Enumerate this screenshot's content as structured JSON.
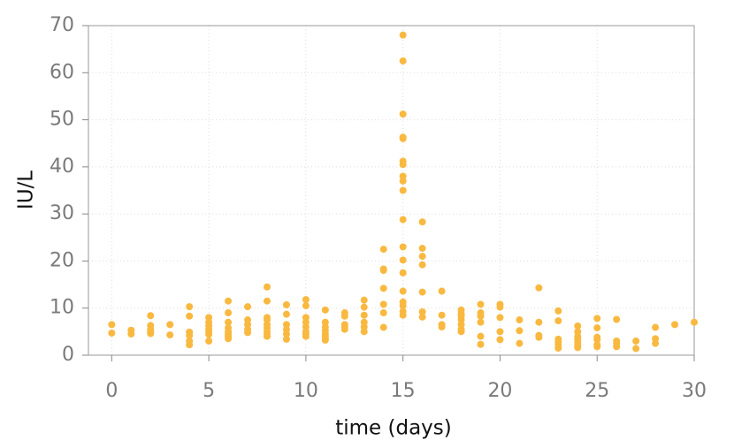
{
  "chart_data": {
    "type": "scatter",
    "xlabel": "time (days)",
    "ylabel": "IU/L",
    "color": "#f9b940",
    "x": [
      0,
      0,
      1,
      1,
      2,
      2,
      2,
      2,
      2,
      3,
      3,
      4,
      4,
      4,
      4,
      4,
      4,
      5,
      5,
      5,
      5,
      5,
      5,
      5,
      6,
      6,
      6,
      6,
      6,
      6,
      6,
      6,
      7,
      7,
      7,
      7,
      7,
      8,
      8,
      8,
      8,
      8,
      8,
      8,
      8,
      8,
      9,
      9,
      9,
      9,
      9,
      9,
      10,
      10,
      10,
      10,
      10,
      10,
      10,
      10,
      11,
      11,
      11,
      11,
      11,
      11,
      11,
      11,
      12,
      12,
      12,
      12,
      12,
      13,
      13,
      13,
      13,
      13,
      13,
      14,
      14,
      14,
      14,
      14,
      14,
      14,
      15,
      15,
      15,
      15,
      15,
      15,
      15,
      15,
      15,
      15,
      15,
      15,
      15,
      15,
      15,
      15,
      15,
      15,
      15,
      16,
      16,
      16,
      16,
      16,
      16,
      16,
      17,
      17,
      17,
      17,
      18,
      18,
      18,
      18,
      18,
      18,
      18,
      19,
      19,
      19,
      19,
      19,
      19,
      20,
      20,
      20,
      20,
      20,
      21,
      21,
      21,
      22,
      22,
      22,
      22,
      23,
      23,
      23,
      23,
      23,
      23,
      24,
      24,
      24,
      24,
      24,
      24,
      24,
      25,
      25,
      25,
      25,
      25,
      25,
      26,
      26,
      26,
      26,
      27,
      27,
      28,
      28,
      28,
      29,
      30
    ],
    "values": [
      6.5,
      4.7,
      5.3,
      4.5,
      8.4,
      6.3,
      5.5,
      5.0,
      4.6,
      6.5,
      4.3,
      10.3,
      8.3,
      4.9,
      4.2,
      3.0,
      2.2,
      8.0,
      7.0,
      6.2,
      5.5,
      5.0,
      4.4,
      3.0,
      11.5,
      9.0,
      7.0,
      5.8,
      5.0,
      4.5,
      4.0,
      3.5,
      10.3,
      7.5,
      6.5,
      5.5,
      4.8,
      14.5,
      11.5,
      8.0,
      7.5,
      6.5,
      5.8,
      5.0,
      4.5,
      4.0,
      10.7,
      8.7,
      6.5,
      5.5,
      4.5,
      3.4,
      11.8,
      10.5,
      8.0,
      7.0,
      6.0,
      5.0,
      4.5,
      4.0,
      9.6,
      7.0,
      6.0,
      5.2,
      4.5,
      4.0,
      3.5,
      3.2,
      9.0,
      8.3,
      6.5,
      6.0,
      5.5,
      11.7,
      10.2,
      8.5,
      7.0,
      6.0,
      5.0,
      22.5,
      18.3,
      18.0,
      14.2,
      10.8,
      9.0,
      5.9,
      68,
      62.5,
      51.2,
      46.3,
      46,
      41.2,
      40.5,
      38,
      37,
      35,
      28.8,
      23,
      20.2,
      17.5,
      13.6,
      11.3,
      10.5,
      9.3,
      8.5,
      28.3,
      22.7,
      21,
      19.2,
      13.4,
      9.2,
      8.1,
      13.6,
      8.5,
      6.5,
      6.0,
      9.6,
      8.8,
      8.3,
      7.5,
      6.5,
      5.5,
      5.0,
      10.8,
      9.0,
      8.3,
      7.0,
      4.0,
      2.3,
      10.8,
      10.2,
      8.0,
      5.0,
      3.3,
      7.5,
      5.2,
      2.5,
      14.3,
      7.0,
      4.2,
      3.8,
      9.4,
      7.3,
      3.4,
      2.8,
      2.2,
      1.5,
      6.2,
      5.0,
      4.0,
      3.4,
      2.7,
      2.0,
      1.6,
      7.8,
      5.8,
      3.8,
      3.3,
      2.2,
      1.8,
      7.6,
      3.0,
      2.5,
      1.8,
      3.0,
      1.4,
      5.9,
      3.5,
      2.5,
      6.5,
      7.0
    ],
    "xlim": [
      -1.2,
      30
    ],
    "ylim": [
      0,
      70
    ],
    "xticks": [
      0,
      5,
      10,
      15,
      20,
      25,
      30
    ],
    "yticks": [
      0,
      10,
      20,
      30,
      40,
      50,
      60,
      70
    ],
    "grid": true
  }
}
